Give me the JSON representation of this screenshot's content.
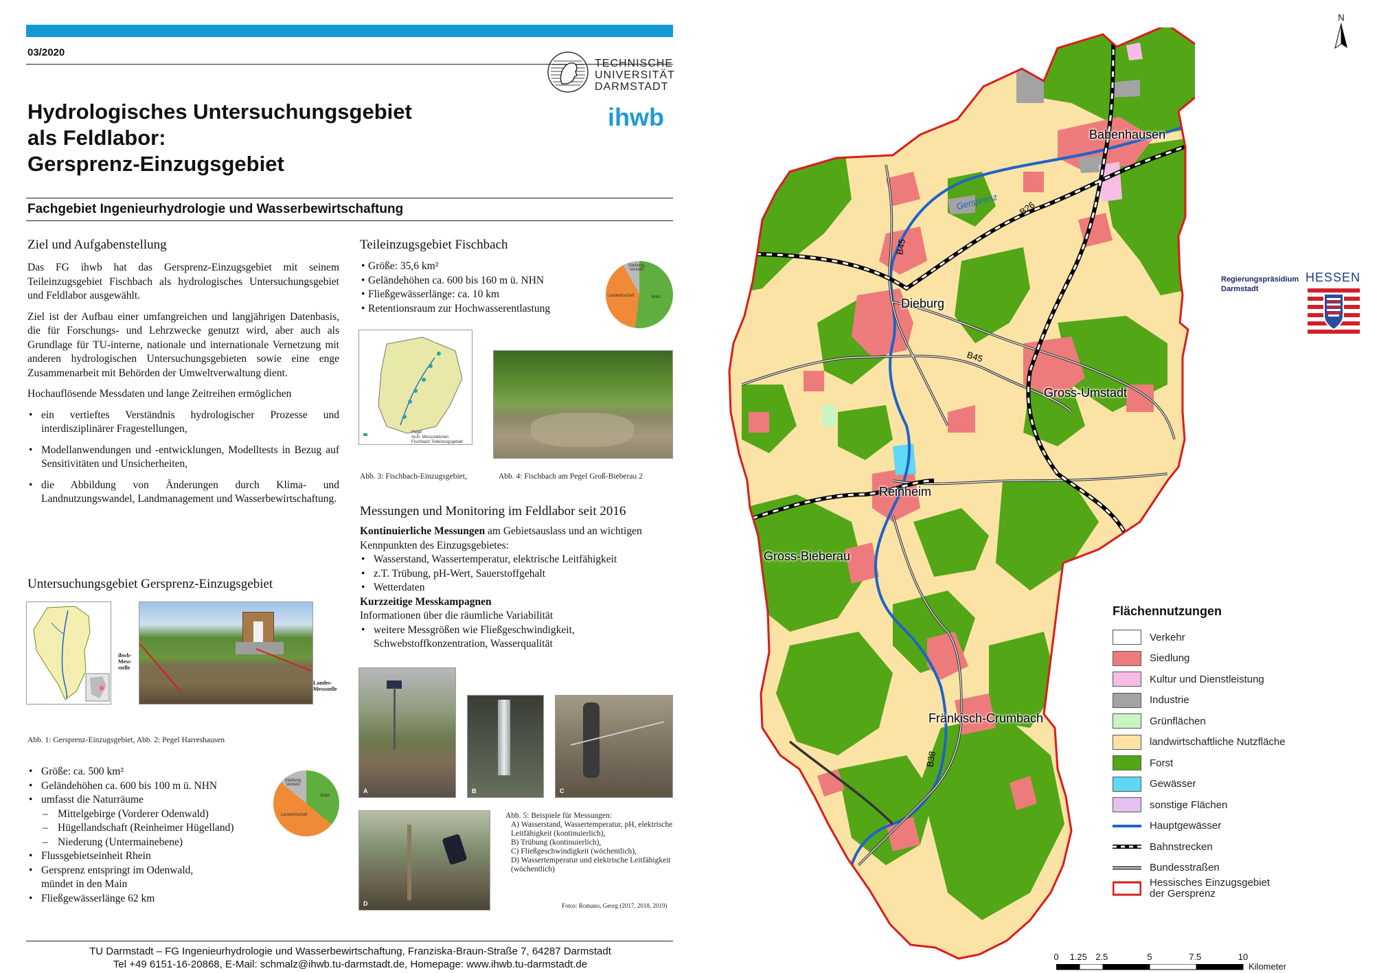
{
  "header": {
    "issue": "03/2020",
    "tu_lines": [
      "TECHNISCHE",
      "UNIVERSITÄT",
      "DARMSTADT"
    ],
    "ihwb": "ihwb",
    "title_lines": [
      "Hydrologisches Untersuchungsgebiet",
      "als Feldlabor:",
      "Gersprenz-Einzugsgebiet"
    ],
    "department": "Fachgebiet Ingenieurhydrologie und Wasserbewirtschaftung"
  },
  "ziel": {
    "heading": "Ziel und Aufgabenstellung",
    "p1": "Das FG ihwb hat das Gersprenz-Einzugsgebiet mit seinem Teileinzugsgebiet Fischbach als hydrologisches Untersuchungsgebiet und Feldlabor ausgewählt.",
    "p2": "Ziel ist der Aufbau einer umfangreichen und langjährigen Datenbasis, die für Forschungs- und Lehrzwecke genutzt wird, aber auch als Grundlage für TU-interne, nationale und internationale Vernetzung mit anderen hydrologischen Untersuchungsgebieten sowie eine enge Zusammenarbeit mit Behörden der Umweltverwaltung dient.",
    "p3": "Hochauflösende Messdaten und lange Zeitreihen ermöglichen",
    "bullets": [
      "ein vertieftes Verständnis hydrologischer Prozesse und interdisziplinärer Fragestellungen,",
      "Modellanwendungen und -entwicklungen, Modelltests in Bezug auf Sensitivitäten und Unsicherheiten,",
      "die Abbildung von Änderungen durch Klima- und Landnutzungswandel, Landmanagement und Wasserbewirtschaftung."
    ]
  },
  "gebiet": {
    "heading": "Untersuchungsgebiet Gersprenz-Einzugsgebiet",
    "label_ihwb": "ihwb-Mess-stelle",
    "label_landes": "Landes-Messstelle",
    "caption": "Abb. 1: Gersprenz-Einzugsgebiet, Abb. 2: Pegel Harreshausen",
    "bullets": [
      "Größe: ca. 500 km²",
      "Geländehöhen ca. 600 bis 100 m ü. NHN",
      "umfasst die Naturräume"
    ],
    "sub_bullets": [
      "Mittelgebirge (Vorderer Odenwald)",
      "Hügellandschaft (Reinheimer Hügelland)",
      "Niederung (Untermainebene)"
    ],
    "bullets2": [
      "Flussgebietseinheit Rhein",
      "Gersprenz entspringt im Odenwald,\nmündet in den Main",
      "Fließgewässerlänge 62 km"
    ],
    "pie": {
      "wald": 0.36,
      "landwirtschaft": 0.5,
      "siedlung": 0.14
    },
    "pie_labels": [
      "Siedlung, Verkehr",
      "Wald",
      "Landwirtschaft"
    ]
  },
  "fischbach": {
    "heading": "Teileinzugsgebiet Fischbach",
    "bullets": [
      "Größe: 35,6 km²",
      "Geländehöhen ca. 600 bis 160 m ü. NHN",
      "Fließgewässerlänge: ca. 10 km",
      "Retentionsraum zur Hochwasserentlastung"
    ],
    "pie": {
      "wald": 0.52,
      "landwirtschaft": 0.4,
      "siedlung": 0.08
    },
    "pie_labels": [
      "Siedlung, Verkehr",
      "Wald",
      "Landwirtschaft"
    ],
    "map_labels": [
      "Pegel",
      "Arch. Messstationen",
      "Fischbach Teileinzugsgebiet"
    ],
    "caption3": "Abb. 3: Fischbach-Einzugsgebiet,",
    "caption4": "Abb. 4: Fischbach am Pegel Groß-Bieberau 2"
  },
  "messungen": {
    "heading": "Messungen und Monitoring im Feldlabor seit 2016",
    "kont_bold": "Kontinuierliche Messungen",
    "kont_rest": " am Gebietsauslass und an wichtigen Kennpunkten des Einzugsgebietes:",
    "kont_bullets": [
      "Wasserstand, Wassertemperatur, elektrische Leitfähigkeit",
      "z.T. Trübung, pH-Wert, Sauerstoffgehalt",
      "Wetterdaten"
    ],
    "kurz_bold": "Kurzzeitige Messkampagnen",
    "kurz_text": "Informationen über die räumliche Variabilität",
    "kurz_bullets": [
      "weitere Messgrößen wie Fließgeschwindigkeit, Schwebstoffkonzentration, Wasserqualität"
    ],
    "photo_tags": [
      "A",
      "B",
      "C",
      "D"
    ],
    "caption_title": "Abb. 5: Beispiele für Messungen:",
    "caption_items": [
      "A) Wasserstand, Wassertemperatur, pH, elektrische Leitfähigkeit (kontinuierlich),",
      "B) Trübung (kontinuierlich),",
      "C) Fließgeschwindigkeit (wöchentlich),",
      "D) Wassertemperatur und elektrische Leitfähigkeit (wöchentlich)"
    ],
    "credit": "Fotos: Romano, Georg (2017, 2018, 2019)"
  },
  "footer": {
    "line1": "TU Darmstadt – FG Ingenieurhydrologie und Wasserbewirtschaftung, Franziska-Braun-Straße 7, 64287 Darmstadt",
    "line2": "Tel +49 6151-16-20868, E-Mail: schmalz@ihwb.tu-darmstadt.de, Homepage: www.ihwb.tu-darmstadt.de"
  },
  "map": {
    "north": "N",
    "towns": [
      "Babenhausen",
      "Dieburg",
      "Gross-Umstadt",
      "Reinheim",
      "Gross-Bieberau",
      "Fränkisch-Crumbach"
    ],
    "river_label": "Gersprenz",
    "roads": [
      "B26",
      "B45",
      "B45",
      "B38"
    ],
    "rp_lines": [
      "Regierungspräsidium",
      "Darmstadt"
    ],
    "hessen": "HESSEN",
    "legend_title": "Flächennutzungen",
    "legend": [
      {
        "label": "Verkehr",
        "color": "#ffffff",
        "kind": "box"
      },
      {
        "label": "Siedlung",
        "color": "#ee7b7b",
        "kind": "box"
      },
      {
        "label": "Kultur und Dienstleistung",
        "color": "#f8bde6",
        "kind": "box"
      },
      {
        "label": "Industrie",
        "color": "#a3a3a3",
        "kind": "box"
      },
      {
        "label": "Grünflächen",
        "color": "#c8f5c2",
        "kind": "box"
      },
      {
        "label": "landwirtschaftliche Nutzfläche",
        "color": "#fbe3a5",
        "kind": "box"
      },
      {
        "label": "Forst",
        "color": "#53a616",
        "kind": "box"
      },
      {
        "label": "Gewässer",
        "color": "#5fd8f5",
        "kind": "box"
      },
      {
        "label": "sonstige Flächen",
        "color": "#e4c2f0",
        "kind": "box"
      },
      {
        "label": "Hauptgewässer",
        "color": "#1f64c9",
        "kind": "river"
      },
      {
        "label": "Bahnstrecken",
        "color": "#000000",
        "kind": "rail"
      },
      {
        "label": "Bundesstraßen",
        "color": "#555555",
        "kind": "road"
      },
      {
        "label": "Hessisches Einzugsgebiet der Gersprenz",
        "color": "#d91c1c",
        "kind": "outline"
      }
    ],
    "scale_ticks": [
      "0",
      "1.25",
      "2.5",
      "5",
      "7.5",
      "10"
    ],
    "scale_unit": "Kilometer"
  }
}
